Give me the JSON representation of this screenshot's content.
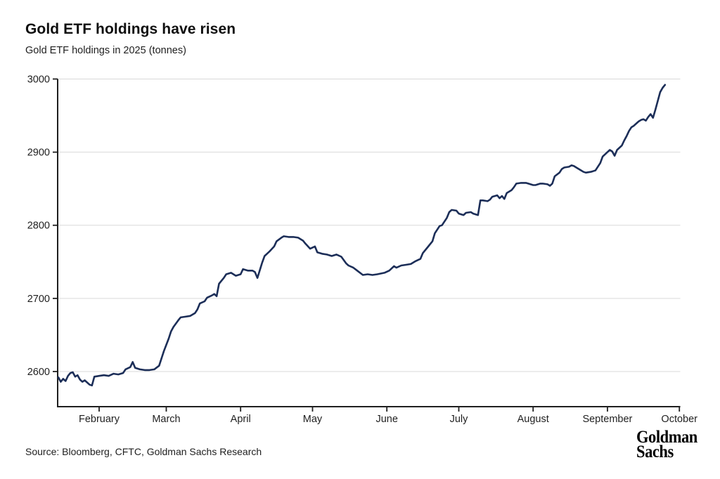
{
  "header": {
    "title": "Gold ETF holdings have risen",
    "subtitle": "Gold ETF holdings in 2025 (tonnes)"
  },
  "footer": {
    "source": "Source: Bloomberg, CFTC, Goldman Sachs Research",
    "logo": {
      "line1": "Goldman",
      "line2": "Sachs"
    }
  },
  "chart_data": {
    "type": "line",
    "title": "Gold ETF holdings have risen",
    "subtitle": "Gold ETF holdings in 2025 (tonnes)",
    "xlabel": "",
    "ylabel": "",
    "grid": "horizontal-only",
    "legend": "none",
    "line_color": "#1c2e58",
    "grid_color": "#d9d9d9",
    "axis_color": "#1f1f1f",
    "ylim": [
      2552,
      3000
    ],
    "y_ticks": [
      2600,
      2700,
      2800,
      2900,
      3000
    ],
    "x_ticks": [
      {
        "label": "February",
        "date": "2025-02-01"
      },
      {
        "label": "March",
        "date": "2025-03-01"
      },
      {
        "label": "April",
        "date": "2025-04-01"
      },
      {
        "label": "May",
        "date": "2025-05-01"
      },
      {
        "label": "June",
        "date": "2025-06-01"
      },
      {
        "label": "July",
        "date": "2025-07-01"
      },
      {
        "label": "August",
        "date": "2025-08-01"
      },
      {
        "label": "September",
        "date": "2025-09-01"
      },
      {
        "label": "October",
        "date": "2025-10-01"
      }
    ],
    "series": [
      {
        "name": "Gold ETF holdings 2025 (tonnes)",
        "points": [
          [
            "2025-01-15",
            2592
          ],
          [
            "2025-01-16",
            2586
          ],
          [
            "2025-01-17",
            2590
          ],
          [
            "2025-01-18",
            2587
          ],
          [
            "2025-01-19",
            2594
          ],
          [
            "2025-01-20",
            2598
          ],
          [
            "2025-01-21",
            2599
          ],
          [
            "2025-01-22",
            2593
          ],
          [
            "2025-01-23",
            2595
          ],
          [
            "2025-01-24",
            2589
          ],
          [
            "2025-01-25",
            2586
          ],
          [
            "2025-01-26",
            2588
          ],
          [
            "2025-01-28",
            2582
          ],
          [
            "2025-01-29",
            2581
          ],
          [
            "2025-01-30",
            2593
          ],
          [
            "2025-02-01",
            2594
          ],
          [
            "2025-02-03",
            2595
          ],
          [
            "2025-02-05",
            2594
          ],
          [
            "2025-02-07",
            2597
          ],
          [
            "2025-02-09",
            2596
          ],
          [
            "2025-02-11",
            2598
          ],
          [
            "2025-02-12",
            2603
          ],
          [
            "2025-02-14",
            2606
          ],
          [
            "2025-02-15",
            2613
          ],
          [
            "2025-02-16",
            2605
          ],
          [
            "2025-02-18",
            2603
          ],
          [
            "2025-02-20",
            2602
          ],
          [
            "2025-02-22",
            2602
          ],
          [
            "2025-02-24",
            2603
          ],
          [
            "2025-02-26",
            2608
          ],
          [
            "2025-02-28",
            2628
          ],
          [
            "2025-03-02",
            2645
          ],
          [
            "2025-03-03",
            2655
          ],
          [
            "2025-03-04",
            2661
          ],
          [
            "2025-03-06",
            2670
          ],
          [
            "2025-03-07",
            2674
          ],
          [
            "2025-03-09",
            2675
          ],
          [
            "2025-03-11",
            2676
          ],
          [
            "2025-03-13",
            2680
          ],
          [
            "2025-03-14",
            2685
          ],
          [
            "2025-03-15",
            2693
          ],
          [
            "2025-03-17",
            2696
          ],
          [
            "2025-03-18",
            2701
          ],
          [
            "2025-03-20",
            2704
          ],
          [
            "2025-03-21",
            2706
          ],
          [
            "2025-03-22",
            2703
          ],
          [
            "2025-03-23",
            2720
          ],
          [
            "2025-03-25",
            2728
          ],
          [
            "2025-03-26",
            2733
          ],
          [
            "2025-03-28",
            2735
          ],
          [
            "2025-03-30",
            2731
          ],
          [
            "2025-04-01",
            2733
          ],
          [
            "2025-04-02",
            2740
          ],
          [
            "2025-04-04",
            2738
          ],
          [
            "2025-04-06",
            2738
          ],
          [
            "2025-04-07",
            2736
          ],
          [
            "2025-04-08",
            2728
          ],
          [
            "2025-04-10",
            2749
          ],
          [
            "2025-04-11",
            2758
          ],
          [
            "2025-04-13",
            2764
          ],
          [
            "2025-04-15",
            2771
          ],
          [
            "2025-04-16",
            2778
          ],
          [
            "2025-04-18",
            2783
          ],
          [
            "2025-04-19",
            2785
          ],
          [
            "2025-04-21",
            2784
          ],
          [
            "2025-04-23",
            2784
          ],
          [
            "2025-04-25",
            2783
          ],
          [
            "2025-04-27",
            2779
          ],
          [
            "2025-04-28",
            2775
          ],
          [
            "2025-04-30",
            2768
          ],
          [
            "2025-05-02",
            2771
          ],
          [
            "2025-05-03",
            2763
          ],
          [
            "2025-05-05",
            2761
          ],
          [
            "2025-05-07",
            2760
          ],
          [
            "2025-05-09",
            2758
          ],
          [
            "2025-05-11",
            2760
          ],
          [
            "2025-05-13",
            2757
          ],
          [
            "2025-05-15",
            2748
          ],
          [
            "2025-05-16",
            2745
          ],
          [
            "2025-05-18",
            2742
          ],
          [
            "2025-05-20",
            2737
          ],
          [
            "2025-05-22",
            2732
          ],
          [
            "2025-05-24",
            2733
          ],
          [
            "2025-05-26",
            2732
          ],
          [
            "2025-05-28",
            2733
          ],
          [
            "2025-05-31",
            2735
          ],
          [
            "2025-06-02",
            2738
          ],
          [
            "2025-06-04",
            2744
          ],
          [
            "2025-06-05",
            2742
          ],
          [
            "2025-06-07",
            2745
          ],
          [
            "2025-06-09",
            2746
          ],
          [
            "2025-06-11",
            2747
          ],
          [
            "2025-06-13",
            2751
          ],
          [
            "2025-06-15",
            2754
          ],
          [
            "2025-06-16",
            2762
          ],
          [
            "2025-06-18",
            2770
          ],
          [
            "2025-06-20",
            2778
          ],
          [
            "2025-06-21",
            2789
          ],
          [
            "2025-06-23",
            2799
          ],
          [
            "2025-06-24",
            2800
          ],
          [
            "2025-06-26",
            2810
          ],
          [
            "2025-06-27",
            2818
          ],
          [
            "2025-06-28",
            2821
          ],
          [
            "2025-06-30",
            2820
          ],
          [
            "2025-07-01",
            2816
          ],
          [
            "2025-07-03",
            2814
          ],
          [
            "2025-07-04",
            2817
          ],
          [
            "2025-07-06",
            2818
          ],
          [
            "2025-07-07",
            2816
          ],
          [
            "2025-07-09",
            2814
          ],
          [
            "2025-07-10",
            2834
          ],
          [
            "2025-07-11",
            2834
          ],
          [
            "2025-07-13",
            2833
          ],
          [
            "2025-07-14",
            2835
          ],
          [
            "2025-07-15",
            2839
          ],
          [
            "2025-07-17",
            2841
          ],
          [
            "2025-07-18",
            2837
          ],
          [
            "2025-07-19",
            2840
          ],
          [
            "2025-07-20",
            2836
          ],
          [
            "2025-07-21",
            2844
          ],
          [
            "2025-07-23",
            2848
          ],
          [
            "2025-07-24",
            2852
          ],
          [
            "2025-07-25",
            2857
          ],
          [
            "2025-07-27",
            2858
          ],
          [
            "2025-07-29",
            2858
          ],
          [
            "2025-07-30",
            2857
          ],
          [
            "2025-08-01",
            2855
          ],
          [
            "2025-08-02",
            2855
          ],
          [
            "2025-08-04",
            2857
          ],
          [
            "2025-08-05",
            2857
          ],
          [
            "2025-08-07",
            2856
          ],
          [
            "2025-08-08",
            2854
          ],
          [
            "2025-08-09",
            2857
          ],
          [
            "2025-08-10",
            2867
          ],
          [
            "2025-08-12",
            2872
          ],
          [
            "2025-08-13",
            2877
          ],
          [
            "2025-08-14",
            2879
          ],
          [
            "2025-08-16",
            2880
          ],
          [
            "2025-08-17",
            2882
          ],
          [
            "2025-08-18",
            2881
          ],
          [
            "2025-08-19",
            2879
          ],
          [
            "2025-08-21",
            2875
          ],
          [
            "2025-08-22",
            2873
          ],
          [
            "2025-08-23",
            2872
          ],
          [
            "2025-08-25",
            2873
          ],
          [
            "2025-08-26",
            2874
          ],
          [
            "2025-08-27",
            2875
          ],
          [
            "2025-08-29",
            2885
          ],
          [
            "2025-08-30",
            2894
          ],
          [
            "2025-09-01",
            2900
          ],
          [
            "2025-09-02",
            2903
          ],
          [
            "2025-09-03",
            2901
          ],
          [
            "2025-09-04",
            2895
          ],
          [
            "2025-09-05",
            2903
          ],
          [
            "2025-09-07",
            2909
          ],
          [
            "2025-09-08",
            2916
          ],
          [
            "2025-09-09",
            2922
          ],
          [
            "2025-09-10",
            2929
          ],
          [
            "2025-09-11",
            2934
          ],
          [
            "2025-09-12",
            2936
          ],
          [
            "2025-09-13",
            2939
          ],
          [
            "2025-09-14",
            2942
          ],
          [
            "2025-09-15",
            2944
          ],
          [
            "2025-09-16",
            2945
          ],
          [
            "2025-09-17",
            2943
          ],
          [
            "2025-09-18",
            2948
          ],
          [
            "2025-09-19",
            2952
          ],
          [
            "2025-09-20",
            2947
          ],
          [
            "2025-09-21",
            2958
          ],
          [
            "2025-09-22",
            2970
          ],
          [
            "2025-09-23",
            2982
          ],
          [
            "2025-09-24",
            2988
          ],
          [
            "2025-09-25",
            2992
          ]
        ]
      }
    ]
  }
}
